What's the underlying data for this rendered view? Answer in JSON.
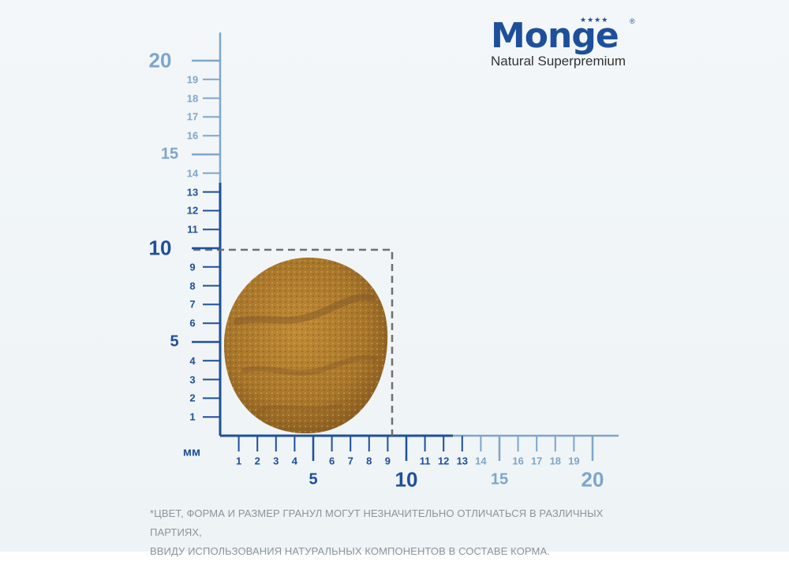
{
  "brand": {
    "name": "Monge",
    "tagline": "Natural Superpremium",
    "stars": "★★★★",
    "registered": "®"
  },
  "scale": {
    "unit_label": "мм",
    "x_major": [
      "5",
      "10",
      "15",
      "20"
    ],
    "x_minor": [
      "1",
      "2",
      "3",
      "4",
      "6",
      "7",
      "8",
      "9",
      "11",
      "12",
      "13",
      "14",
      "16",
      "17",
      "18",
      "19"
    ],
    "y_major": [
      "5",
      "10",
      "15",
      "20"
    ],
    "y_minor": [
      "1",
      "2",
      "3",
      "4",
      "6",
      "7",
      "8",
      "9",
      "11",
      "12",
      "13",
      "14",
      "16",
      "17",
      "18",
      "19"
    ],
    "kibble_size_mm": {
      "width": 10,
      "height": 10
    },
    "colors": {
      "dark": "#1e4f9a",
      "light": "#7ea6c8",
      "dashed": "#6f6f6f"
    }
  },
  "kibble": {
    "shape": "round",
    "color": "#b07d2c"
  },
  "footnote": {
    "line1": "*ЦВЕТ, ФОРМА И РАЗМЕР ГРАНУЛ МОГУТ НЕЗНАЧИТЕЛЬНО ОТЛИЧАТЬСЯ В РАЗЛИЧНЫХ ПАРТИЯХ,",
    "line2": "ВВИДУ ИСПОЛЬЗОВАНИЯ НАТУРАЛЬНЫХ КОМПОНЕНТОВ В СОСТАВЕ КОРМА."
  }
}
